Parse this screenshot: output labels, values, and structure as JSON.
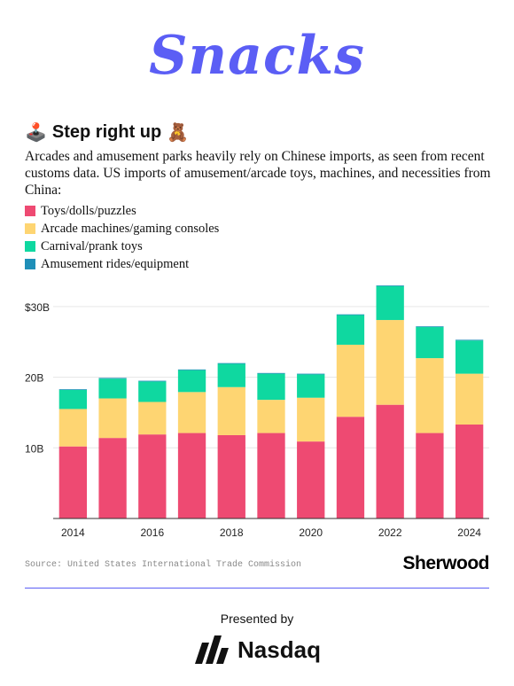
{
  "brand": {
    "logo_text": "Snacks"
  },
  "header": {
    "icon_left": "joystick-emoji",
    "title": "Step right up",
    "icon_right": "teddy-bear-emoji",
    "description": "Arcades and amusement parks heavily rely on Chinese imports, as seen from recent customs data. US imports of amusement/arcade toys, machines, and necessities from China:"
  },
  "colors": {
    "toys": "#ee4a72",
    "arcade": "#fed572",
    "carnival": "#0fd8a0",
    "rides": "#1f8fb8",
    "accent": "#5b5ef5"
  },
  "chart_data": {
    "type": "bar",
    "stacked": true,
    "categories": [
      "2014",
      "2015",
      "2016",
      "2017",
      "2018",
      "2019",
      "2020",
      "2021",
      "2022",
      "2023",
      "2024"
    ],
    "x_tick_labels": [
      "2014",
      "2016",
      "2018",
      "2020",
      "2022",
      "2024"
    ],
    "series": [
      {
        "name": "Toys/dolls/puzzles",
        "values": [
          10.2,
          11.4,
          11.9,
          12.1,
          11.8,
          12.1,
          10.9,
          14.4,
          16.1,
          12.1,
          13.3
        ]
      },
      {
        "name": "Arcade machines/gaming consoles",
        "values": [
          5.3,
          5.6,
          4.6,
          5.8,
          6.8,
          4.7,
          6.2,
          10.2,
          12.0,
          10.6,
          7.2
        ]
      },
      {
        "name": "Carnival/prank toys",
        "values": [
          2.7,
          2.8,
          2.9,
          3.1,
          3.3,
          3.7,
          3.3,
          4.2,
          4.8,
          4.4,
          4.7
        ]
      },
      {
        "name": "Amusement rides/equipment",
        "values": [
          0.1,
          0.1,
          0.1,
          0.1,
          0.1,
          0.1,
          0.1,
          0.1,
          0.1,
          0.1,
          0.1
        ]
      }
    ],
    "y_ticks": [
      {
        "value": 10,
        "label": "10B"
      },
      {
        "value": 20,
        "label": "20B"
      },
      {
        "value": 30,
        "label": "$30B"
      }
    ],
    "ylim": [
      0,
      33
    ],
    "grid": true,
    "legend_position": "top-left"
  },
  "footer": {
    "source": "Source: United States International Trade Commission",
    "publisher": "Sherwood",
    "presented_by": "Presented by",
    "sponsor": "Nasdaq"
  }
}
